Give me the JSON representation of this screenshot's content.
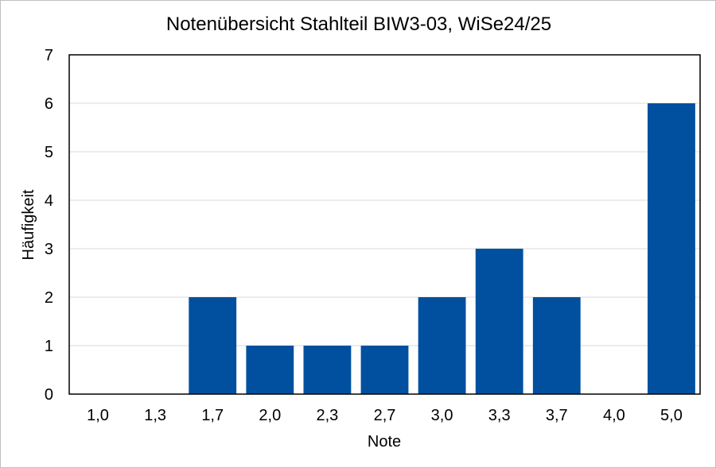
{
  "chart_data": {
    "type": "bar",
    "title": "Notenübersicht Stahlteil BIW3-03, WiSe24/25",
    "xlabel": "Note",
    "ylabel": "Häufigkeit",
    "categories": [
      "1,0",
      "1,3",
      "1,7",
      "2,0",
      "2,3",
      "2,7",
      "3,0",
      "3,3",
      "3,7",
      "4,0",
      "5,0"
    ],
    "values": [
      0,
      0,
      2,
      1,
      1,
      1,
      2,
      3,
      2,
      0,
      6
    ],
    "ylim": [
      0,
      7
    ],
    "yticks": [
      0,
      1,
      2,
      3,
      4,
      5,
      6,
      7
    ],
    "grid": true,
    "legend": "none",
    "bar_color": "#00509f"
  }
}
